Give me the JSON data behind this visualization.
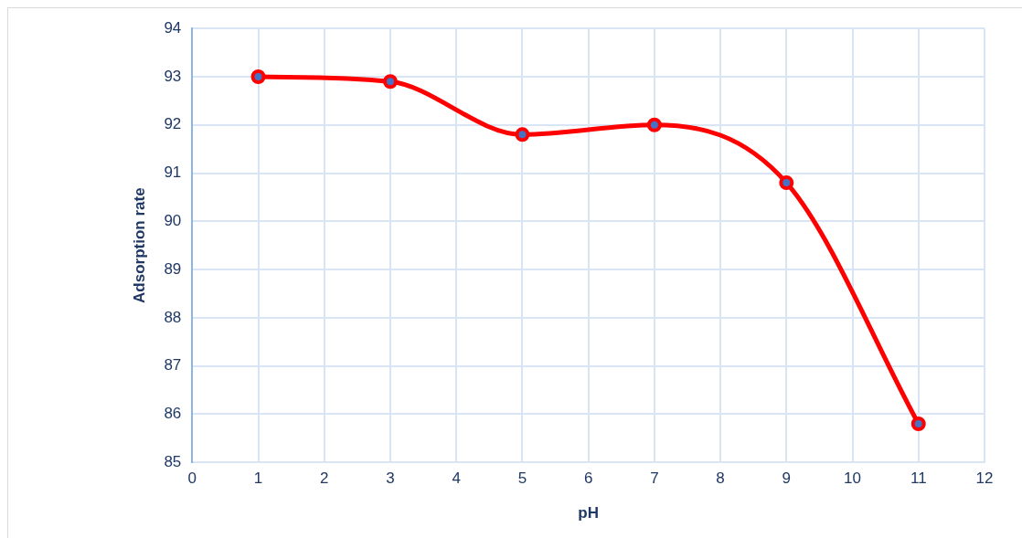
{
  "chart_data": {
    "type": "line",
    "xlabel": "pH",
    "ylabel": "Adsorption rate",
    "x": [
      1,
      3,
      5,
      7,
      9,
      11
    ],
    "series": [
      {
        "color": "#ff0000",
        "values": [
          93,
          92.9,
          91.8,
          92,
          90.8,
          85.8
        ]
      }
    ],
    "xlim": [
      0,
      12
    ],
    "xticks": [
      0,
      1,
      2,
      3,
      4,
      5,
      6,
      7,
      8,
      9,
      10,
      11,
      12
    ],
    "ylim": [
      85,
      94
    ],
    "yticks": [
      85,
      86,
      87,
      88,
      89,
      90,
      91,
      92,
      93,
      94
    ],
    "grid": true,
    "marker": "circle",
    "legend": false
  }
}
